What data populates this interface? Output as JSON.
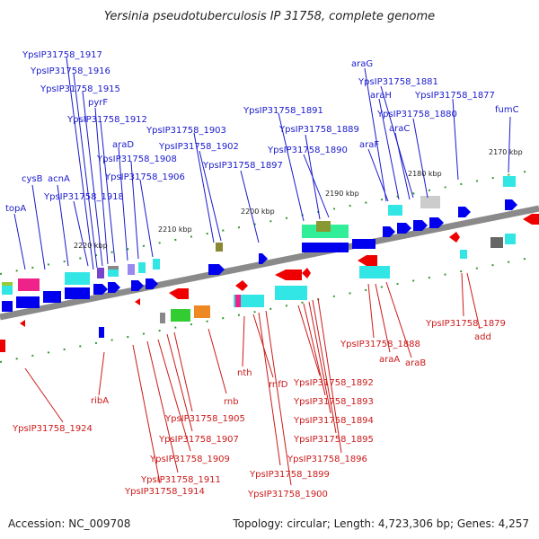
{
  "title": "Yersinia pseudotuberculosis IP 31758, complete genome",
  "footer": {
    "accession": "Accession: NC_009708",
    "topology": "Topology: circular; Length: 4,723,306 bp; Genes: 4,257"
  },
  "ticks": [
    "2220 kbp",
    "2210 kbp",
    "2200 kbp",
    "2190 kbp",
    "2180 kbp",
    "2170 kbp"
  ],
  "colors": {
    "forward_label": "#1a1acc",
    "reverse_label": "#cc1a1a",
    "backbone": "#8a8a8a",
    "forward_cds": "#0000ee",
    "reverse_cds": "#ee0000",
    "cyan_feature": "#33e6e6",
    "green_feature": "#22cc44",
    "marker": "#339933"
  },
  "top_labels": [
    "YpsIP31758_1917",
    "YpsIP31758_1916",
    "YpsIP31758_1915",
    "pyrF",
    "YpsIP31758_1912",
    "araD",
    "YpsIP31758_1908",
    "YpsIP31758_1906",
    "YpsIP31758_1903",
    "YpsIP31758_1902",
    "YpsIP31758_1897",
    "YpsIP31758_1891",
    "YpsIP31758_1889",
    "YpsIP31758_1890",
    "cysB",
    "topA",
    "acnA",
    "YpsIP31758_1918",
    "araG",
    "YpsIP31758_1881",
    "araH",
    "YpsIP31758_1877",
    "YpsIP31758_1880",
    "araC",
    "araF",
    "fumC"
  ],
  "bottom_labels": [
    "YpsIP31758_1924",
    "ribA",
    "YpsIP31758_1905",
    "YpsIP31758_1907",
    "YpsIP31758_1909",
    "YpsIP31758_1911",
    "YpsIP31758_1914",
    "rnb",
    "nth",
    "rnfD",
    "YpsIP31758_1899",
    "YpsIP31758_1900",
    "YpsIP31758_1892",
    "YpsIP31758_1893",
    "YpsIP31758_1894",
    "YpsIP31758_1895",
    "YpsIP31758_1896",
    "YpsIP31758_1888",
    "araA",
    "araB",
    "YpsIP31758_1879",
    "add"
  ]
}
